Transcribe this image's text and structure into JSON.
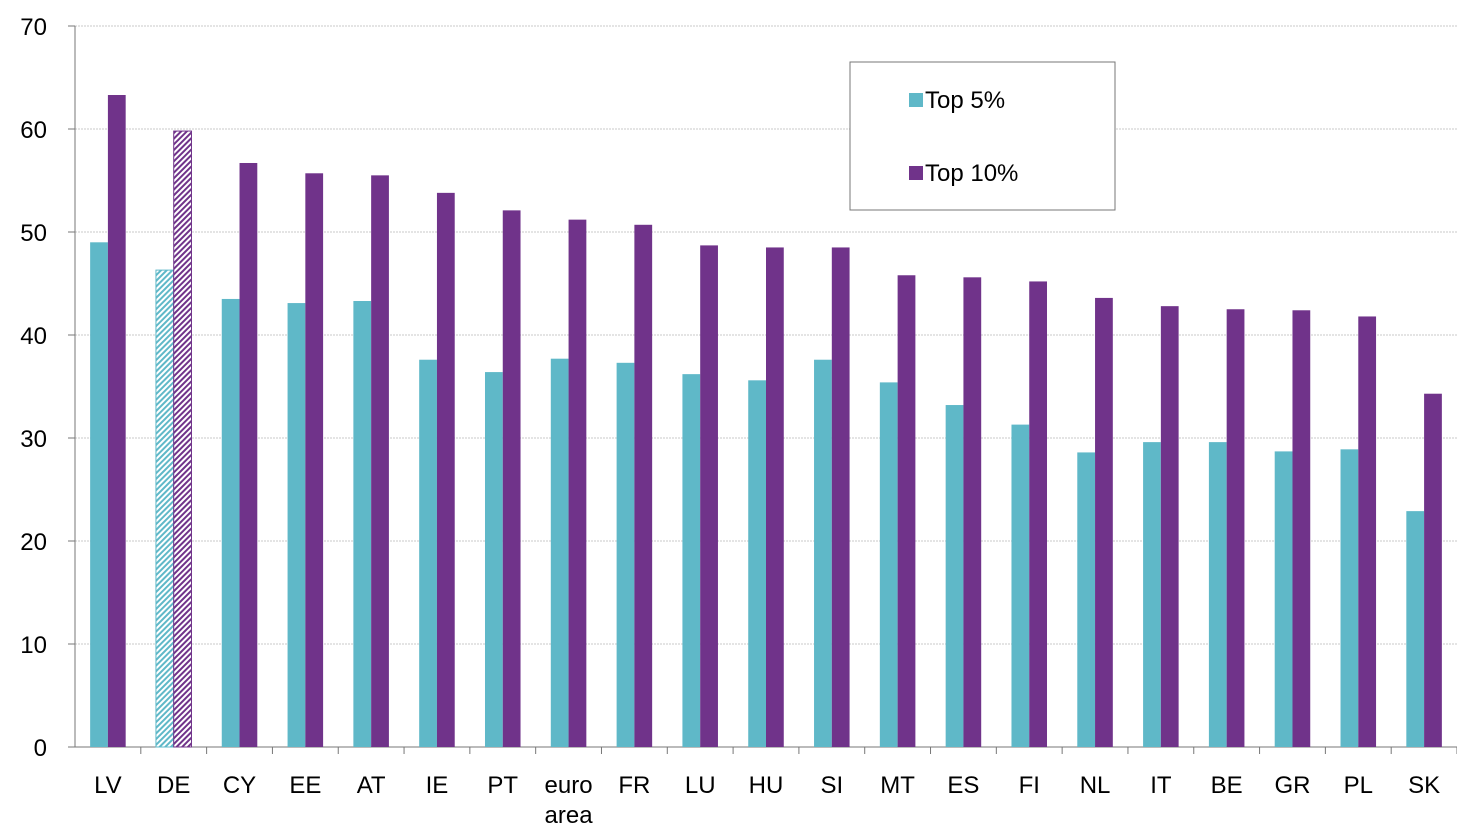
{
  "chart_data": {
    "type": "bar",
    "categories": [
      "LV",
      "DE",
      "CY",
      "EE",
      "AT",
      "IE",
      "PT",
      "euro area",
      "FR",
      "LU",
      "HU",
      "SI",
      "MT",
      "ES",
      "FI",
      "NL",
      "IT",
      "BE",
      "GR",
      "PL",
      "SK"
    ],
    "series": [
      {
        "name": "Top 5%",
        "color": "#5fb8c8",
        "values": [
          49.0,
          46.3,
          43.5,
          43.1,
          43.3,
          37.6,
          36.4,
          37.7,
          37.3,
          36.2,
          35.6,
          37.6,
          35.4,
          33.2,
          31.3,
          28.6,
          29.6,
          29.6,
          28.7,
          28.9,
          22.9
        ]
      },
      {
        "name": "Top 10%",
        "color": "#70338a",
        "values": [
          63.3,
          59.8,
          56.7,
          55.7,
          55.5,
          53.8,
          52.1,
          51.2,
          50.7,
          48.7,
          48.5,
          48.5,
          45.8,
          45.6,
          45.2,
          43.6,
          42.8,
          42.5,
          42.4,
          41.8,
          34.3
        ]
      }
    ],
    "hatched_categories": [
      "DE"
    ],
    "ylim": [
      0,
      70
    ],
    "yticks": [
      0,
      10,
      20,
      30,
      40,
      50,
      60,
      70
    ],
    "grid": true,
    "legend": "top-right"
  }
}
